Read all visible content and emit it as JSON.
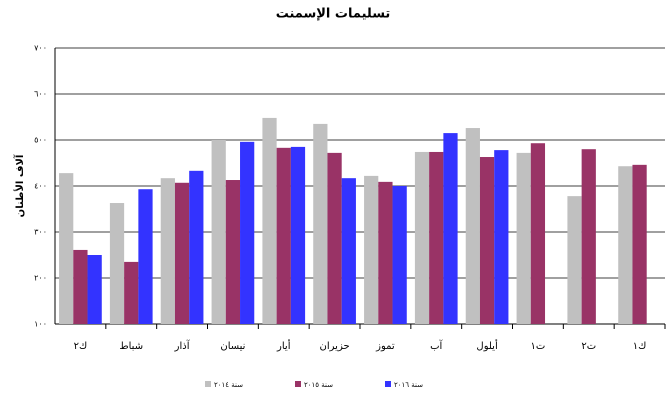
{
  "chart_data": {
    "type": "bar",
    "title": "تسليمات الإسمنت",
    "y_label": "آلاف الأطنان",
    "categories": [
      "ك٢",
      "شباط",
      "آذار",
      "نيسان",
      "أيار",
      "حزيران",
      "تموز",
      "آب",
      "أيلول",
      "ت١",
      "ت٢",
      "ك١"
    ],
    "series": [
      {
        "name": "سنة ٢٠١٤",
        "color": "#c0c0c0",
        "values": [
          428,
          363,
          417,
          500,
          548,
          535,
          422,
          474,
          526,
          472,
          378,
          443
        ]
      },
      {
        "name": "سنة ٢٠١٥",
        "color": "#993366",
        "values": [
          261,
          235,
          407,
          413,
          483,
          472,
          409,
          474,
          463,
          493,
          480,
          446
        ]
      },
      {
        "name": "سنة ٢٠١٦",
        "color": "#3333ff",
        "values": [
          250,
          393,
          433,
          496,
          485,
          417,
          400,
          515,
          478,
          null,
          null,
          null
        ]
      }
    ],
    "ylim": [
      100,
      700
    ],
    "yticks": [
      {
        "value": 100,
        "label": "١٠٠"
      },
      {
        "value": 200,
        "label": "٢٠٠"
      },
      {
        "value": 300,
        "label": "٣٠٠"
      },
      {
        "value": 400,
        "label": "٤٠٠"
      },
      {
        "value": 500,
        "label": "٥٠٠"
      },
      {
        "value": 600,
        "label": "٦٠٠"
      },
      {
        "value": 700,
        "label": "٧٠٠"
      }
    ],
    "grid": true
  }
}
